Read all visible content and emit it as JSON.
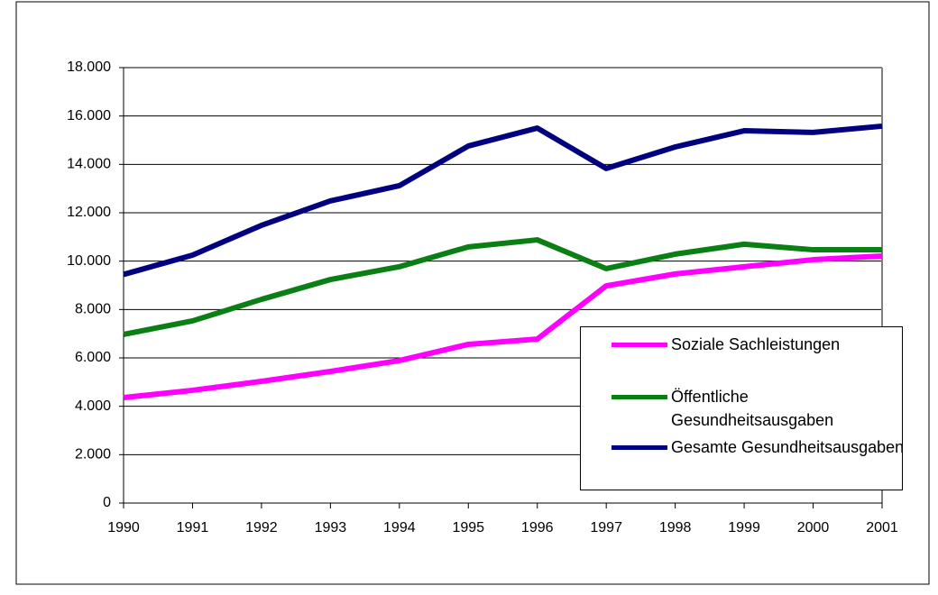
{
  "chart_data": {
    "type": "line",
    "categories": [
      "1990",
      "1991",
      "1992",
      "1993",
      "1994",
      "1995",
      "1996",
      "1997",
      "1998",
      "1999",
      "2000",
      "2001"
    ],
    "series": [
      {
        "name": "Soziale Sachleistungen",
        "color": "#ff00ff",
        "values": [
          4360,
          4660,
          5030,
          5440,
          5890,
          6560,
          6780,
          8980,
          9470,
          9770,
          10060,
          10210
        ]
      },
      {
        "name": "Öffentliche Gesundheitsausgaben",
        "color": "#0a7f14",
        "values": [
          6970,
          7530,
          8420,
          9240,
          9770,
          10590,
          10880,
          9690,
          10290,
          10700,
          10470,
          10470
        ]
      },
      {
        "name": "Gesamte Gesundheitsausgaben",
        "color": "#000080",
        "values": [
          9450,
          10250,
          11480,
          12490,
          13120,
          14760,
          15500,
          13830,
          14720,
          15390,
          15320,
          15580
        ]
      }
    ],
    "ylim": [
      0,
      18000
    ],
    "yticks": [
      0,
      {
        "value": 2000,
        "label": "2.000"
      },
      {
        "value": 4000,
        "label": "4.000"
      },
      {
        "value": 6000,
        "label": "6.000"
      },
      {
        "value": 8000,
        "label": "8.000"
      },
      {
        "value": 10000,
        "label": "10.000"
      },
      {
        "value": 12000,
        "label": "12.000"
      },
      {
        "value": 14000,
        "label": "14.000"
      },
      {
        "value": 16000,
        "label": "16.000"
      },
      {
        "value": 18000,
        "label": "18.000"
      }
    ],
    "grid": true,
    "legend": "lower right"
  }
}
